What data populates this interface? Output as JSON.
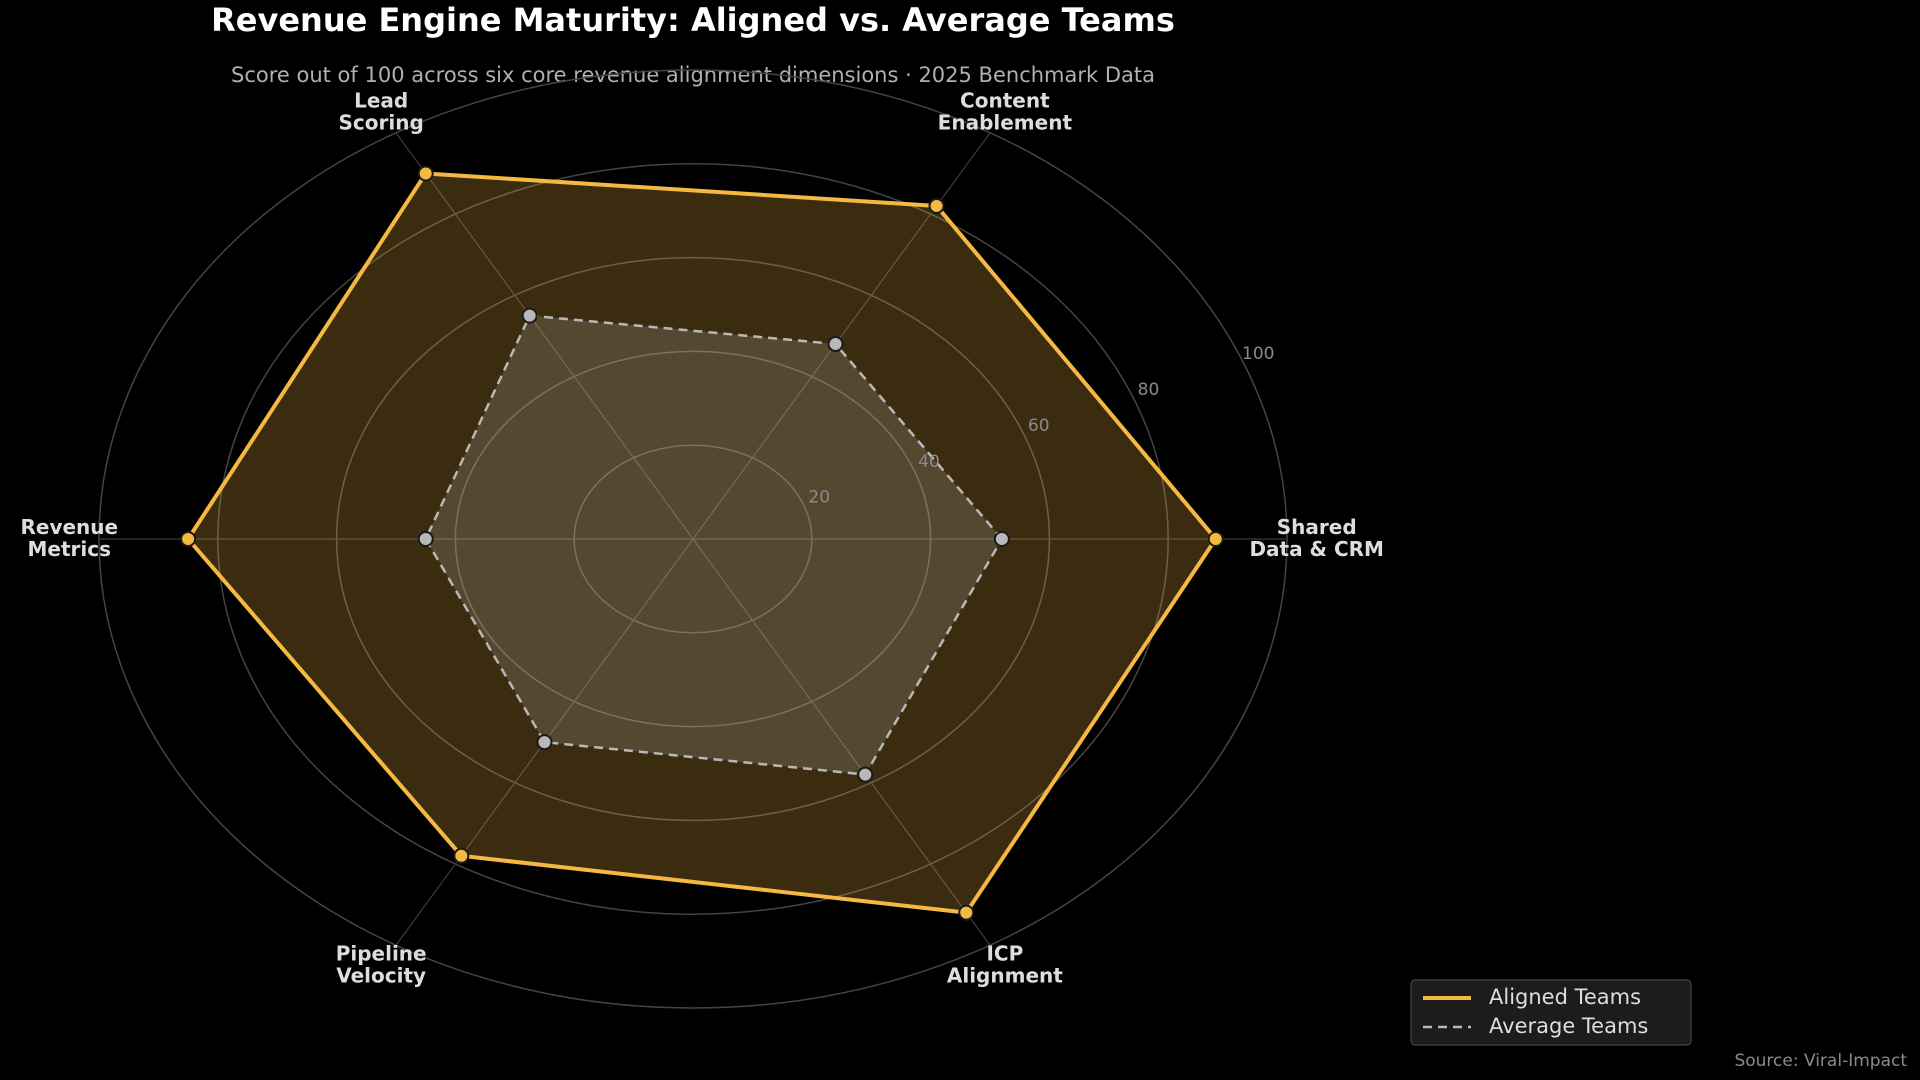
{
  "chart_data": {
    "type": "radar",
    "title": "Revenue Engine Maturity: Aligned vs. Average Teams",
    "subtitle": "Score out of 100 across six core revenue alignment dimensions  ·  2025 Benchmark Data",
    "categories": [
      "Shared\nData & CRM",
      "Content\nEnablement",
      "Lead\nScoring",
      "Revenue\nMetrics",
      "Pipeline\nVelocity",
      "ICP\nAlignment"
    ],
    "series": [
      {
        "name": "Aligned Teams",
        "color": "#f5b942",
        "values": [
          88,
          82,
          90,
          85,
          78,
          92
        ]
      },
      {
        "name": "Average Teams",
        "color": "#b8b8b8",
        "values": [
          52,
          48,
          55,
          45,
          50,
          58
        ]
      }
    ],
    "rlim": [
      0,
      100
    ],
    "rticks": [
      20,
      40,
      60,
      80,
      100
    ],
    "grid": true,
    "legend": "lower right",
    "source": "Source: Viral-Impact"
  }
}
